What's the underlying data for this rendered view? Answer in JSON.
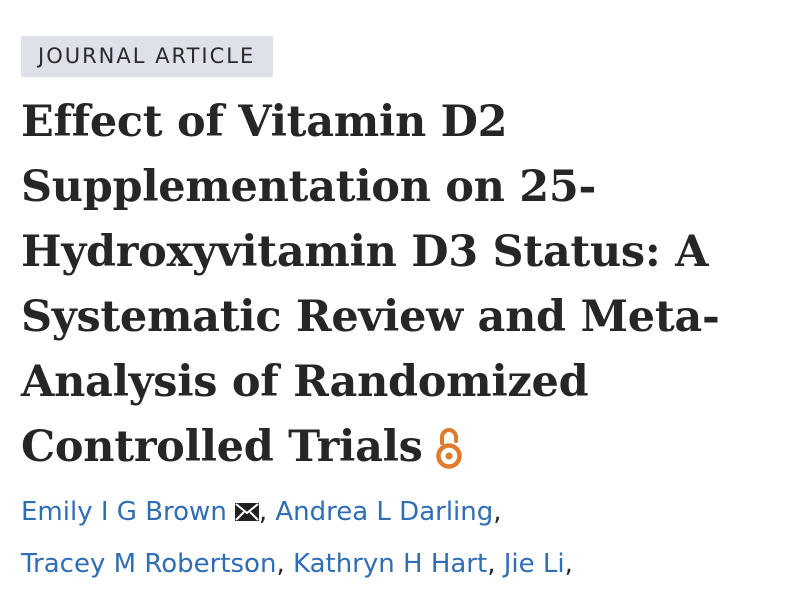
{
  "article": {
    "type_label": "JOURNAL ARTICLE",
    "title_lines": [
      "Effect of Vitamin D2",
      "Supplementation on 25-",
      "Hydroxyvitamin D3 Status: A",
      "Systematic Review and Meta-",
      "Analysis of Randomized",
      "Controlled Trials"
    ],
    "open_access_icon": "open-access-icon",
    "authors": [
      "Emily I G Brown",
      "Andrea L Darling",
      "Tracey M Robertson",
      "Kathryn H Hart",
      "Jie Li"
    ],
    "separator": ",",
    "corresponding_icon": "envelope-icon",
    "colors": {
      "badge_bg": "#dfe1ea",
      "title": "#262626",
      "author_link": "#2f6db5",
      "open_access": "#e07a2f"
    }
  }
}
